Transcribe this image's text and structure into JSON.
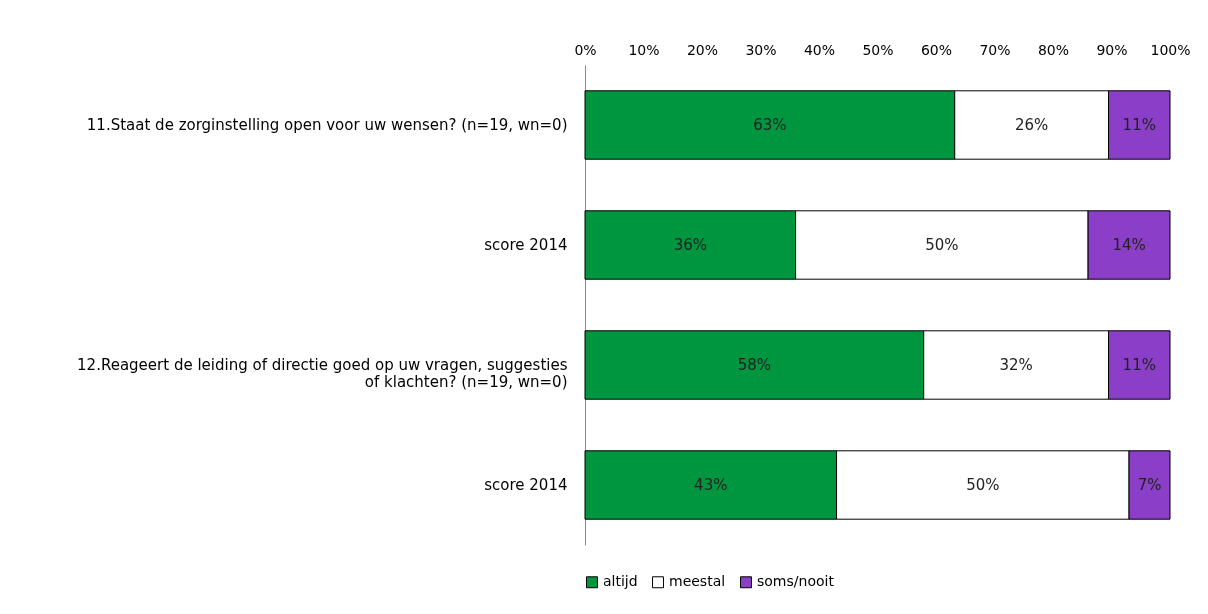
{
  "chart_data": {
    "type": "bar",
    "orientation": "horizontal",
    "stacked": true,
    "categories": [
      "11.Staat de zorginstelling open voor uw wensen? (n=19, wn=0)",
      "score 2014",
      "12.Reageert de leiding of directie goed op uw vragen, suggesties of klachten? (n=19, wn=0)",
      "score 2014"
    ],
    "series": [
      {
        "name": "altijd",
        "color": "#00953f",
        "values": [
          63.2,
          36,
          57.9,
          43
        ],
        "value_labels": [
          "63%",
          "36%",
          "58%",
          "43%"
        ]
      },
      {
        "name": "meestal",
        "color": "#ffffff",
        "values": [
          26.3,
          50,
          31.6,
          50
        ],
        "value_labels": [
          "26%",
          "50%",
          "32%",
          "50%"
        ]
      },
      {
        "name": "soms/nooit",
        "color": "#8b3fc8",
        "values": [
          10.5,
          14,
          10.5,
          7
        ],
        "value_labels": [
          "11%",
          "14%",
          "11%",
          "7%"
        ]
      }
    ],
    "xlim": [
      0,
      100
    ],
    "xticks": [
      {
        "value": 0,
        "label": "0%"
      },
      {
        "value": 10,
        "label": "10%"
      },
      {
        "value": 20,
        "label": "20%"
      },
      {
        "value": 30,
        "label": "30%"
      },
      {
        "value": 40,
        "label": "40%"
      },
      {
        "value": 50,
        "label": "50%"
      },
      {
        "value": 60,
        "label": "60%"
      },
      {
        "value": 70,
        "label": "70%"
      },
      {
        "value": 80,
        "label": "80%"
      },
      {
        "value": 90,
        "label": "90%"
      },
      {
        "value": 100,
        "label": "100%"
      }
    ],
    "grid": false,
    "legend": "bottom"
  }
}
